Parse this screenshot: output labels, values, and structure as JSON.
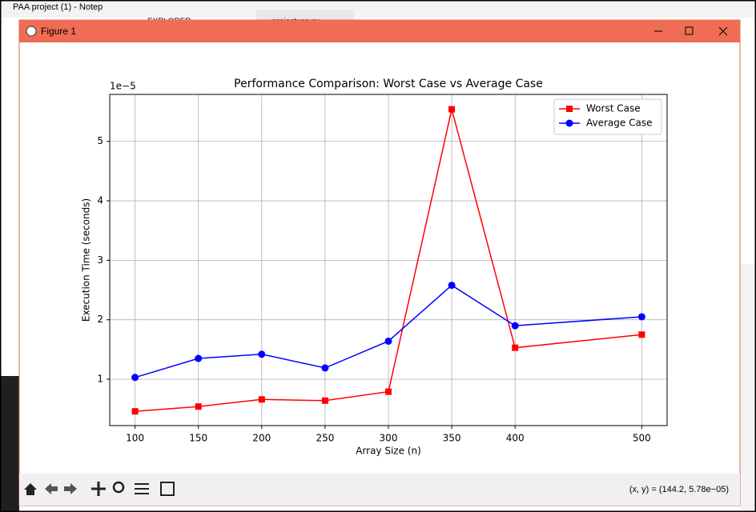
{
  "background": {
    "app_title": "PAA project (1) - Notep",
    "explorer": "EXPLORER",
    "tab": "projectuas.py"
  },
  "window": {
    "title": "Figure 1"
  },
  "toolbar": {
    "status": "(x, y) = (144.2, 5.78e−05)"
  },
  "chart_data": {
    "type": "line",
    "title": "Performance Comparison: Worst Case vs Average Case",
    "x_label": "Array Size (n)",
    "y_label": "Execution Time (seconds)",
    "y_offset_label": "1e−5",
    "x": [
      100,
      150,
      200,
      250,
      300,
      350,
      400,
      500
    ],
    "series": [
      {
        "name": "Worst Case",
        "color": "#ff0000",
        "marker": "s",
        "values": [
          0.46,
          0.54,
          0.66,
          0.64,
          0.79,
          5.54,
          1.53,
          1.75
        ]
      },
      {
        "name": "Average Case",
        "color": "#0000ff",
        "marker": "o",
        "values": [
          1.03,
          1.35,
          1.42,
          1.19,
          1.64,
          2.58,
          1.9,
          2.05
        ]
      }
    ],
    "xlim": [
      80,
      520
    ],
    "ylim": [
      0.22,
      5.79
    ],
    "xticks": [
      100,
      150,
      200,
      250,
      300,
      350,
      400,
      500
    ],
    "yticks": [
      1,
      2,
      3,
      4,
      5
    ],
    "grid": true,
    "legend": "upper-right"
  }
}
